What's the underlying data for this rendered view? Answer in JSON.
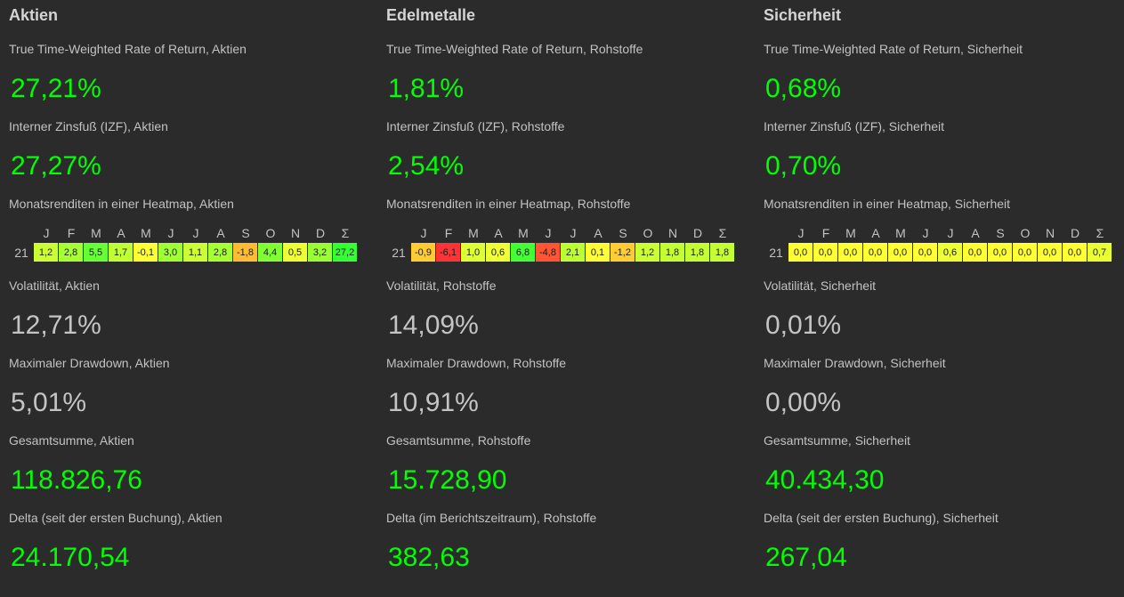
{
  "columns": [
    {
      "title": "Aktien",
      "twr": {
        "label": "True Time-Weighted Rate of Return, Aktien",
        "value": "27,21%"
      },
      "izf": {
        "label": "Interner Zinsfuß (IZF), Aktien",
        "value": "27,27%"
      },
      "heatmap": {
        "label": "Monatsrenditen in einer Heatmap, Aktien",
        "year": "21",
        "cells": [
          {
            "text": "1,2",
            "color": "#ccff33"
          },
          {
            "text": "2,8",
            "color": "#a6ff33"
          },
          {
            "text": "5,5",
            "color": "#66ff33"
          },
          {
            "text": "1,7",
            "color": "#bfff33"
          },
          {
            "text": "-0,1",
            "color": "#ffff33"
          },
          {
            "text": "3,0",
            "color": "#a0ff33"
          },
          {
            "text": "1,1",
            "color": "#ccff33"
          },
          {
            "text": "2,8",
            "color": "#a6ff33"
          },
          {
            "text": "-1,8",
            "color": "#ffbb33"
          },
          {
            "text": "4,4",
            "color": "#80ff33"
          },
          {
            "text": "0,5",
            "color": "#eeff33"
          },
          {
            "text": "3,2",
            "color": "#99ff33"
          },
          {
            "text": "27,2",
            "color": "#33ff33"
          }
        ]
      },
      "volatility": {
        "label": "Volatilität, Aktien",
        "value": "12,71%"
      },
      "drawdown": {
        "label": "Maximaler Drawdown, Aktien",
        "value": "5,01%"
      },
      "total": {
        "label": "Gesamtsumme, Aktien",
        "value": "118.826,76"
      },
      "delta": {
        "label": "Delta (seit der ersten Buchung), Aktien",
        "value": "24.170,54"
      }
    },
    {
      "title": "Edelmetalle",
      "twr": {
        "label": "True Time-Weighted Rate of Return, Rohstoffe",
        "value": "1,81%"
      },
      "izf": {
        "label": "Interner Zinsfuß (IZF), Rohstoffe",
        "value": "2,54%"
      },
      "heatmap": {
        "label": "Monatsrenditen in einer Heatmap, Rohstoffe",
        "year": "21",
        "cells": [
          {
            "text": "-0,9",
            "color": "#ffcc33"
          },
          {
            "text": "-6,1",
            "color": "#ff3333"
          },
          {
            "text": "1,0",
            "color": "#ddff33"
          },
          {
            "text": "0,6",
            "color": "#eeff33"
          },
          {
            "text": "6,8",
            "color": "#44ff33"
          },
          {
            "text": "-4,8",
            "color": "#ff5533"
          },
          {
            "text": "2,1",
            "color": "#bbff33"
          },
          {
            "text": "0,1",
            "color": "#ffff33"
          },
          {
            "text": "-1,2",
            "color": "#ffcc33"
          },
          {
            "text": "1,2",
            "color": "#ccff33"
          },
          {
            "text": "1,8",
            "color": "#c4ff33"
          },
          {
            "text": "1,8",
            "color": "#c4ff33"
          },
          {
            "text": "1,8",
            "color": "#c4ff33"
          }
        ]
      },
      "volatility": {
        "label": "Volatilität, Rohstoffe",
        "value": "14,09%"
      },
      "drawdown": {
        "label": "Maximaler Drawdown, Rohstoffe",
        "value": "10,91%"
      },
      "total": {
        "label": "Gesamtsumme, Rohstoffe",
        "value": "15.728,90"
      },
      "delta": {
        "label": "Delta (im Berichtszeitraum), Rohstoffe",
        "value": "382,63"
      }
    },
    {
      "title": "Sicherheit",
      "twr": {
        "label": "True Time-Weighted Rate of Return, Sicherheit",
        "value": "0,68%"
      },
      "izf": {
        "label": "Interner Zinsfuß (IZF), Sicherheit",
        "value": "0,70%"
      },
      "heatmap": {
        "label": "Monatsrenditen in einer Heatmap, Sicherheit",
        "year": "21",
        "cells": [
          {
            "text": "0,0",
            "color": "#ffff33"
          },
          {
            "text": "0,0",
            "color": "#ffff33"
          },
          {
            "text": "0,0",
            "color": "#ffff33"
          },
          {
            "text": "0,0",
            "color": "#ffff33"
          },
          {
            "text": "0,0",
            "color": "#ffff33"
          },
          {
            "text": "0,0",
            "color": "#ffff33"
          },
          {
            "text": "0,6",
            "color": "#eeff33"
          },
          {
            "text": "0,0",
            "color": "#ffff33"
          },
          {
            "text": "0,0",
            "color": "#ffff33"
          },
          {
            "text": "0,0",
            "color": "#ffff33"
          },
          {
            "text": "0,0",
            "color": "#ffff33"
          },
          {
            "text": "0,0",
            "color": "#ffff33"
          },
          {
            "text": "0,7",
            "color": "#eaff33"
          }
        ]
      },
      "volatility": {
        "label": "Volatilität, Sicherheit",
        "value": "0,01%"
      },
      "drawdown": {
        "label": "Maximaler Drawdown, Sicherheit",
        "value": "0,00%"
      },
      "total": {
        "label": "Gesamtsumme, Sicherheit",
        "value": "40.434,30"
      },
      "delta": {
        "label": "Delta (seit der ersten Buchung), Sicherheit",
        "value": "267,04"
      }
    }
  ],
  "months": [
    "J",
    "F",
    "M",
    "A",
    "M",
    "J",
    "J",
    "A",
    "S",
    "O",
    "N",
    "D",
    "Σ"
  ]
}
